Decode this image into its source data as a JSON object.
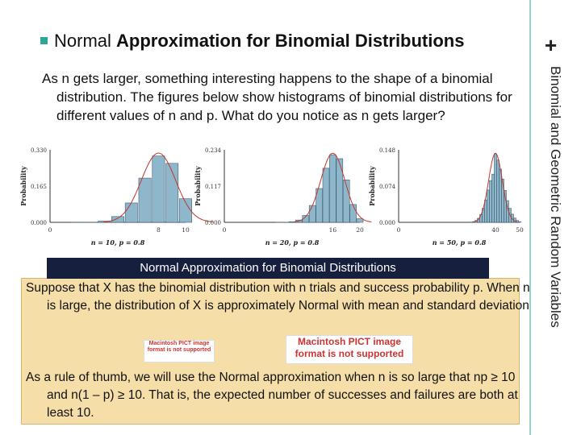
{
  "slide": {
    "bullet_title_plain": "Normal",
    "bullet_title_bold": "Approximation for Binomial Distributions",
    "side_title": "Binomial and Geometric Random Variables",
    "plus": "+",
    "intro_text": "As n gets larger, something interesting happens to the shape of a binomial distribution.  The figures below show histograms of binomial distributions for different values of n and p. What do you notice as n gets larger?",
    "definition_title": "Normal Approximation for Binomial Distributions",
    "definition_text": "Suppose that X has the binomial distribution with n trials and success probability p. When n is large, the distribution of X is approximately Normal with mean and standard deviation",
    "pict_placeholder_1": "Macintosh PICT image format is not supported",
    "pict_placeholder_2": "Macintosh PICT image format is not supported",
    "rule_text": "As a rule of thumb, we will use the Normal approximation when n is so large that np ≥ 10 and n(1 – p) ≥ 10.  That is, the expected number of successes and failures are both at least 10."
  },
  "chart_data": [
    {
      "type": "bar",
      "ylabel": "Probability",
      "xlabel": "n = 10, p = 0.8",
      "yticks": [
        "0.000",
        "0.165",
        "0.330"
      ],
      "xticks": [
        "0",
        "8",
        "10"
      ],
      "ylim": [
        0,
        0.33
      ],
      "xlim": [
        0,
        10
      ],
      "x": [
        0,
        1,
        2,
        3,
        4,
        5,
        6,
        7,
        8,
        9,
        10
      ],
      "values": [
        0.0,
        0.0,
        0.0001,
        0.0008,
        0.0055,
        0.0264,
        0.0881,
        0.2013,
        0.302,
        0.2684,
        0.1074
      ],
      "normal_curve": true
    },
    {
      "type": "bar",
      "ylabel": "Probability",
      "xlabel": "n = 20, p = 0.8",
      "yticks": [
        "0.000",
        "0.117",
        "0.234"
      ],
      "xticks": [
        "0",
        "16",
        "20"
      ],
      "ylim": [
        0,
        0.234
      ],
      "xlim": [
        0,
        20
      ],
      "x": [
        8,
        9,
        10,
        11,
        12,
        13,
        14,
        15,
        16,
        17,
        18,
        19,
        20
      ],
      "values": [
        0.0001,
        0.0005,
        0.002,
        0.0074,
        0.0222,
        0.0545,
        0.1091,
        0.1746,
        0.2182,
        0.2054,
        0.1369,
        0.0576,
        0.0115
      ],
      "normal_curve": true
    },
    {
      "type": "bar",
      "ylabel": "Probability",
      "xlabel": "n = 50, p = 0.8",
      "yticks": [
        "0.000",
        "0.074",
        "0.148"
      ],
      "xticks": [
        "0",
        "40",
        "50"
      ],
      "ylim": [
        0,
        0.148
      ],
      "xlim": [
        0,
        50
      ],
      "x": [
        30,
        31,
        32,
        33,
        34,
        35,
        36,
        37,
        38,
        39,
        40,
        41,
        42,
        43,
        44,
        45,
        46,
        47,
        48,
        49,
        50
      ],
      "values": [
        0.0006,
        0.0015,
        0.0037,
        0.0081,
        0.0161,
        0.0286,
        0.0458,
        0.066,
        0.0853,
        0.0984,
        0.1398,
        0.1271,
        0.1087,
        0.0883,
        0.0653,
        0.0444,
        0.0286,
        0.0167,
        0.0087,
        0.0038,
        0.0014
      ],
      "normal_curve": true
    }
  ]
}
